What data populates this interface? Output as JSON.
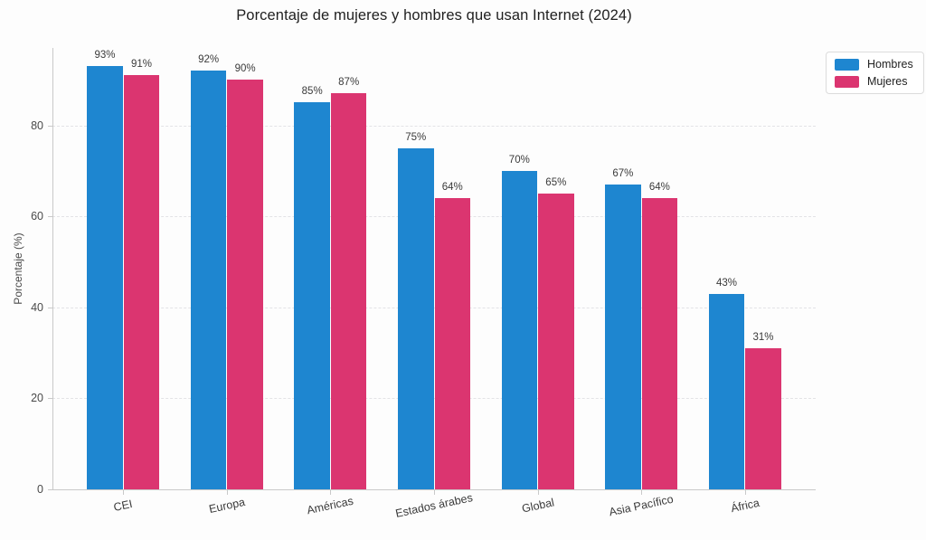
{
  "chart_data": {
    "type": "bar",
    "title": "Porcentaje de mujeres y hombres que usan Internet (2024)",
    "xlabel": "",
    "ylabel": "Porcentaje (%)",
    "categories": [
      "CEI",
      "Europa",
      "Américas",
      "Estados árabes",
      "Global",
      "Asia Pacífico",
      "África"
    ],
    "series": [
      {
        "name": "Hombres",
        "color": "#1E86D0",
        "values": [
          93,
          92,
          85,
          75,
          70,
          67,
          43
        ]
      },
      {
        "name": "Mujeres",
        "color": "#DB3570",
        "values": [
          91,
          90,
          87,
          64,
          65,
          64,
          31
        ]
      }
    ],
    "value_suffix": "%",
    "yticks": [
      0,
      20,
      40,
      60,
      80
    ],
    "ylim": [
      0,
      97
    ],
    "grid": true,
    "grid_style": "dashed",
    "legend_position": "top-right",
    "colors": {
      "axis": "#c9c9c9",
      "grid": "#e3e3e6",
      "title": "#1f1f1f",
      "tick_label": "#4a4a4a",
      "value_label": "#3a3a3a",
      "background": "#fdfdfd"
    }
  }
}
